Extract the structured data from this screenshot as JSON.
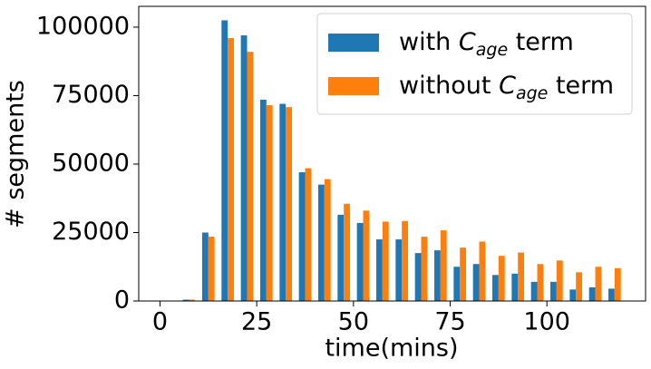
{
  "chart_data": {
    "type": "bar",
    "xlabel": "time(mins)",
    "ylabel": "# segments",
    "x": [
      2.5,
      7.5,
      12.5,
      17.5,
      22.5,
      27.5,
      32.5,
      37.5,
      42.5,
      47.5,
      52.5,
      57.5,
      62.5,
      67.5,
      72.5,
      77.5,
      82.5,
      87.5,
      92.5,
      97.5,
      102.5,
      107.5,
      112.5,
      117.5
    ],
    "series": [
      {
        "name": [
          "with ",
          "C",
          "age",
          " term"
        ],
        "color": "#1f77b4",
        "values": [
          0,
          500,
          25000,
          102500,
          97000,
          73500,
          72000,
          47000,
          42500,
          31500,
          28500,
          22500,
          22500,
          17500,
          18500,
          12500,
          13500,
          9500,
          10000,
          7000,
          7000,
          4200,
          5000,
          4500
        ]
      },
      {
        "name": [
          "without ",
          "C",
          "age",
          " term"
        ],
        "color": "#ff7f0e",
        "values": [
          0,
          500,
          23500,
          96000,
          91000,
          71500,
          70800,
          48500,
          44500,
          35500,
          33000,
          29000,
          29200,
          23500,
          25800,
          19500,
          21700,
          16500,
          17700,
          13500,
          14800,
          10500,
          12500,
          12000
        ]
      }
    ],
    "xlim": [
      -5.5,
      125.5
    ],
    "xticks": [
      0,
      25,
      50,
      75,
      100
    ],
    "ylim": [
      0,
      107600
    ],
    "yticks": [
      0,
      25000,
      50000,
      75000,
      100000
    ],
    "grid": false,
    "legend": "upper right"
  }
}
